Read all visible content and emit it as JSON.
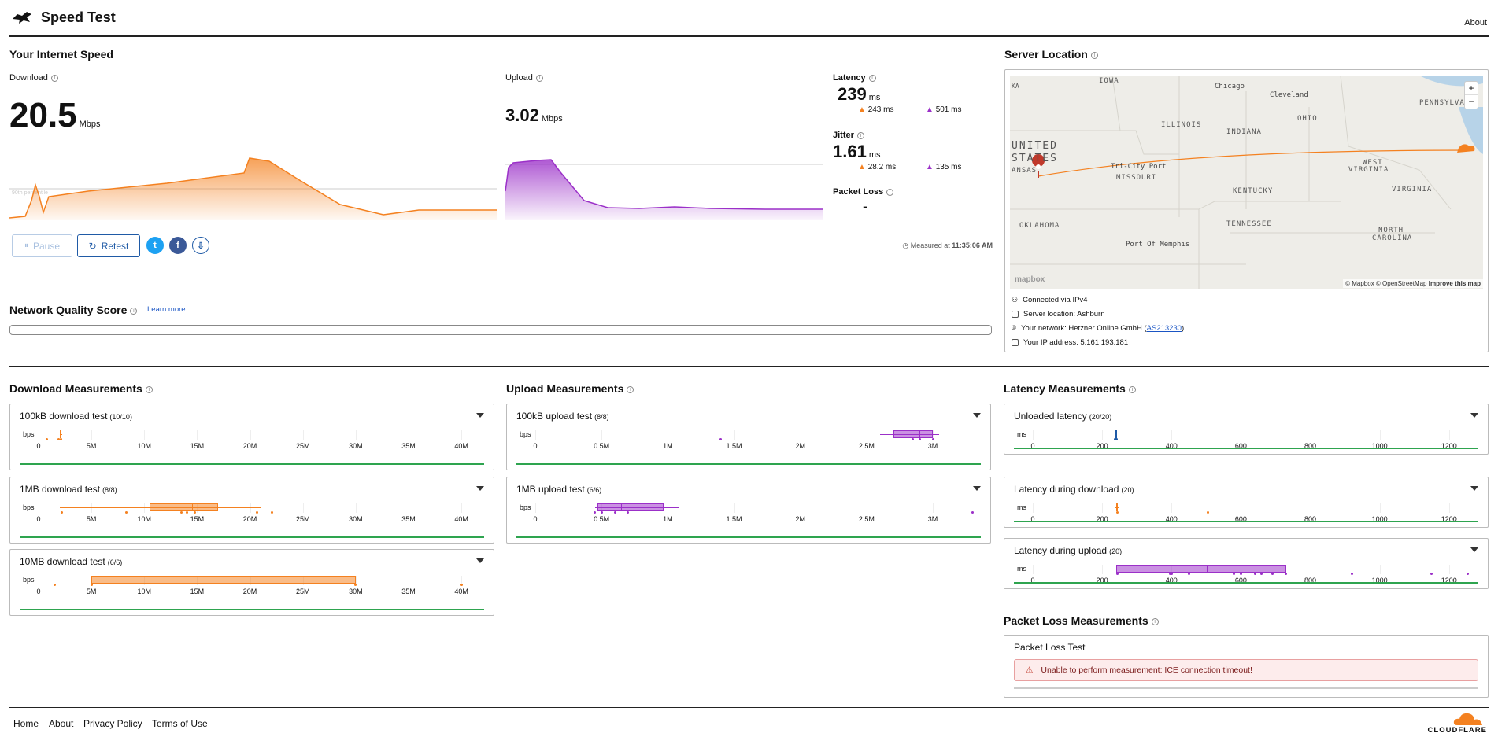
{
  "header": {
    "title": "Speed Test",
    "about": "About"
  },
  "speed": {
    "section_title": "Your Internet Speed",
    "download": {
      "label": "Download",
      "value": "20.5",
      "unit": "Mbps",
      "percentile_label": "90th percentile"
    },
    "upload": {
      "label": "Upload",
      "value": "3.02",
      "unit": "Mbps"
    },
    "latency": {
      "label": "Latency",
      "value": "239",
      "unit": "ms",
      "down": "243 ms",
      "up": "501 ms"
    },
    "jitter": {
      "label": "Jitter",
      "value": "1.61",
      "unit": "ms",
      "down": "28.2 ms",
      "up": "135 ms"
    },
    "packet_loss": {
      "label": "Packet Loss",
      "value": "-"
    },
    "buttons": {
      "pause": "Pause",
      "retest": "Retest"
    },
    "measured_prefix": "Measured at",
    "measured_time": "11:35:06 AM"
  },
  "nqs": {
    "title": "Network Quality Score",
    "learn_more": "Learn more"
  },
  "server": {
    "title": "Server Location",
    "map_labels": [
      "IOWA",
      "Chicago",
      "Cleveland",
      "PENNSYLVA",
      "ILLINOIS",
      "INDIANA",
      "OHIO",
      "UNITED",
      "STATES",
      "ANSAS",
      "Tri-City Port",
      "MISSOURI",
      "WEST",
      "VIRGINIA",
      "KENTUCKY",
      "VIRGINIA",
      "OKLAHOMA",
      "TENNESSEE",
      "NORTH",
      "CAROLINA",
      "Port Of Memphis",
      "KA"
    ],
    "map_credit": "© Mapbox © OpenStreetMap",
    "improve": "Improve this map",
    "mapbox": "mapbox",
    "zoom_in": "+",
    "zoom_out": "−",
    "connected": "Connected via IPv4",
    "server_location": "Server location: Ashburn",
    "network_prefix": "Your network: Hetzner Online GmbH (",
    "asn": "AS213230",
    "network_suffix": ")",
    "ip": "Your IP address: 5.161.193.181"
  },
  "download_measurements": {
    "title": "Download Measurements",
    "unit": "bps",
    "ticks": [
      "0",
      "5M",
      "10M",
      "15M",
      "20M",
      "25M",
      "30M",
      "35M",
      "40M"
    ],
    "tests": [
      {
        "name": "100kB download test",
        "count": "(10/10)"
      },
      {
        "name": "1MB download test",
        "count": "(8/8)"
      },
      {
        "name": "10MB download test",
        "count": "(6/6)"
      }
    ]
  },
  "upload_measurements": {
    "title": "Upload Measurements",
    "unit": "bps",
    "ticks": [
      "0",
      "0.5M",
      "1M",
      "1.5M",
      "2M",
      "2.5M",
      "3M"
    ],
    "tests": [
      {
        "name": "100kB upload test",
        "count": "(8/8)"
      },
      {
        "name": "1MB upload test",
        "count": "(6/6)"
      }
    ]
  },
  "latency_measurements": {
    "title": "Latency Measurements",
    "unit": "ms",
    "ticks": [
      "0",
      "200",
      "400",
      "600",
      "800",
      "1000",
      "1200"
    ],
    "tests": [
      {
        "name": "Unloaded latency",
        "count": "(20/20)"
      },
      {
        "name": "Latency during download",
        "count": "(20)"
      },
      {
        "name": "Latency during upload",
        "count": "(20)"
      }
    ]
  },
  "packet_loss_measurements": {
    "title": "Packet Loss Measurements",
    "test_name": "Packet Loss Test",
    "error": "Unable to perform measurement: ICE connection timeout!"
  },
  "footer": {
    "home": "Home",
    "about": "About",
    "privacy": "Privacy Policy",
    "terms": "Terms of Use",
    "brand": "CLOUDFLARE"
  },
  "colors": {
    "download": "#f48120",
    "upload": "#9b30c8",
    "latency": "#1f5aa6",
    "green": "#2ea44f"
  }
}
